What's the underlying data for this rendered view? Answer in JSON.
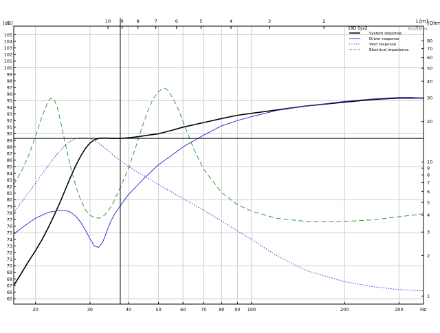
{
  "chart_data": {
    "type": "line",
    "title": "",
    "legend_title": "18D Sys2",
    "watermark": "BassBox",
    "legend_position": "top-right",
    "grid": true,
    "x_axis": {
      "scale": "log",
      "range": [
        17,
        360
      ],
      "unit_label": "Hz",
      "tick_labels": [
        20,
        30,
        40,
        50,
        60,
        70,
        80,
        90,
        100,
        200,
        300
      ]
    },
    "top_axis": {
      "unit_label": "[m]",
      "tick_labels": [
        10,
        9,
        8,
        7,
        6,
        5,
        4,
        3,
        2,
        1
      ],
      "tick_positions_hz": [
        34.3,
        38.1,
        42.9,
        49.0,
        57.2,
        68.6,
        85.8,
        114.3,
        171.5,
        343.0
      ]
    },
    "y_axis_left": {
      "unit_label": "[dB]",
      "range": [
        64.2,
        106.3
      ],
      "tick_labels": [
        65,
        66,
        67,
        68,
        69,
        70,
        71,
        72,
        73,
        74,
        75,
        76,
        77,
        78,
        79,
        80,
        81,
        82,
        83,
        84,
        85,
        86,
        87,
        88,
        89,
        90,
        91,
        92,
        93,
        94,
        95,
        96,
        97,
        98,
        99,
        100,
        101,
        102,
        103,
        104,
        105
      ]
    },
    "y_axis_right": {
      "unit_label": "[Ohm]",
      "scale": "log",
      "range": [
        0.87,
        103
      ],
      "tick_labels": [
        1,
        2,
        3,
        4,
        5,
        6,
        7,
        8,
        9,
        10,
        20,
        30,
        40,
        50,
        60,
        70,
        80
      ]
    },
    "cursor": {
      "x_hz": 37.6,
      "y_db": 89.3
    },
    "series": [
      {
        "name": "System response",
        "axis": "left",
        "color": "#000000",
        "dash": "solid",
        "x": [
          17,
          18,
          19,
          20,
          21,
          22,
          23,
          24,
          25,
          26,
          27,
          28,
          29,
          30,
          31,
          32,
          33,
          34,
          35,
          36,
          37,
          38,
          40,
          42,
          45,
          48,
          50,
          55,
          60,
          70,
          80,
          90,
          100,
          120,
          150,
          200,
          250,
          300,
          330,
          360
        ],
        "y": [
          67.0,
          68.9,
          70.7,
          72.3,
          74.0,
          75.8,
          77.7,
          79.6,
          81.6,
          83.5,
          85.2,
          86.6,
          87.8,
          88.6,
          89.1,
          89.3,
          89.35,
          89.35,
          89.3,
          89.3,
          89.3,
          89.3,
          89.4,
          89.5,
          89.7,
          89.9,
          90.0,
          90.5,
          91.0,
          91.7,
          92.3,
          92.8,
          93.1,
          93.6,
          94.2,
          94.8,
          95.2,
          95.4,
          95.4,
          95.4
        ]
      },
      {
        "name": "Driver response",
        "axis": "left",
        "color": "#3333cc",
        "dash": "solid",
        "x": [
          17,
          18,
          19,
          20,
          22,
          24,
          25,
          26,
          27,
          28,
          29,
          30,
          31,
          32,
          33,
          34,
          35,
          36,
          38,
          40,
          45,
          50,
          55,
          60,
          70,
          80,
          90,
          100,
          120,
          150,
          200,
          250,
          300,
          330,
          360
        ],
        "y": [
          74.8,
          75.7,
          76.5,
          77.2,
          78.1,
          78.4,
          78.4,
          78.1,
          77.5,
          76.6,
          75.4,
          74.1,
          73.0,
          72.8,
          73.6,
          75.2,
          76.7,
          77.8,
          79.4,
          80.8,
          83.3,
          85.3,
          86.7,
          88.0,
          89.8,
          91.2,
          92.0,
          92.6,
          93.5,
          94.2,
          94.9,
          95.3,
          95.5,
          95.5,
          95.4
        ]
      },
      {
        "name": "Vent response",
        "axis": "left",
        "color": "#3333cc",
        "dash": "dotted",
        "x": [
          17,
          18,
          19,
          20,
          21,
          22,
          23,
          24,
          25,
          26,
          27,
          28,
          29,
          30,
          31,
          32,
          33,
          34,
          35,
          36,
          38,
          40,
          45,
          50,
          60,
          70,
          80,
          90,
          100,
          120,
          150,
          200,
          250,
          300,
          360
        ],
        "y": [
          78.0,
          79.6,
          81.1,
          82.5,
          83.9,
          85.2,
          86.4,
          87.4,
          88.3,
          88.9,
          89.3,
          89.4,
          89.4,
          89.3,
          89.0,
          88.6,
          88.1,
          87.6,
          87.1,
          86.6,
          85.8,
          85.0,
          83.6,
          82.3,
          80.2,
          78.4,
          76.8,
          75.3,
          74.0,
          71.6,
          69.3,
          67.6,
          66.8,
          66.4,
          66.2
        ]
      },
      {
        "name": "Electrical impedance",
        "axis": "right",
        "color": "#339933",
        "dash": "dashed",
        "x": [
          17,
          18,
          19,
          20,
          21,
          22,
          22.5,
          23,
          23.5,
          24,
          25,
          26,
          27,
          28,
          29,
          30,
          31,
          32,
          33,
          34,
          35,
          36,
          38,
          40,
          42,
          44,
          46,
          48,
          50,
          52,
          53,
          54,
          56,
          58,
          60,
          65,
          70,
          80,
          90,
          100,
          120,
          150,
          200,
          250,
          300,
          360
        ],
        "y": [
          6.8,
          8.5,
          11.2,
          15.5,
          22.0,
          28.5,
          30.0,
          29.0,
          25.5,
          21.0,
          13.5,
          9.0,
          6.6,
          5.2,
          4.4,
          4.0,
          3.85,
          3.8,
          3.9,
          4.2,
          4.6,
          5.2,
          6.8,
          9.0,
          12.5,
          17.5,
          23.5,
          29.5,
          33.5,
          35.5,
          35.0,
          33.5,
          29.0,
          24.5,
          20.0,
          12.5,
          8.8,
          5.9,
          4.8,
          4.3,
          3.8,
          3.6,
          3.6,
          3.7,
          3.9,
          4.1
        ]
      }
    ]
  }
}
